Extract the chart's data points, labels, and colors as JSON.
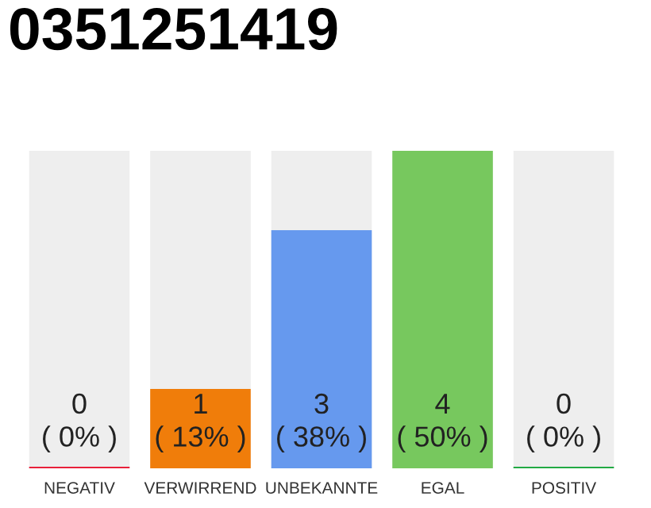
{
  "chart_data": {
    "type": "bar",
    "title": "0351251419",
    "categories": [
      "NEGATIV",
      "VERWIRREND",
      "UNBEKANNTE",
      "EGAL",
      "POSITIV"
    ],
    "values": [
      0,
      1,
      3,
      4,
      0
    ],
    "colors": [
      "#e8203a",
      "#f07d0a",
      "#6699ee",
      "#77c85e",
      "#22aa44"
    ],
    "value_labels": [
      "0\n( 0% )",
      "1\n( 13% )",
      "3\n( 38% )",
      "4\n( 50% )",
      "0\n( 0% )"
    ],
    "grid": false,
    "legend": false
  }
}
